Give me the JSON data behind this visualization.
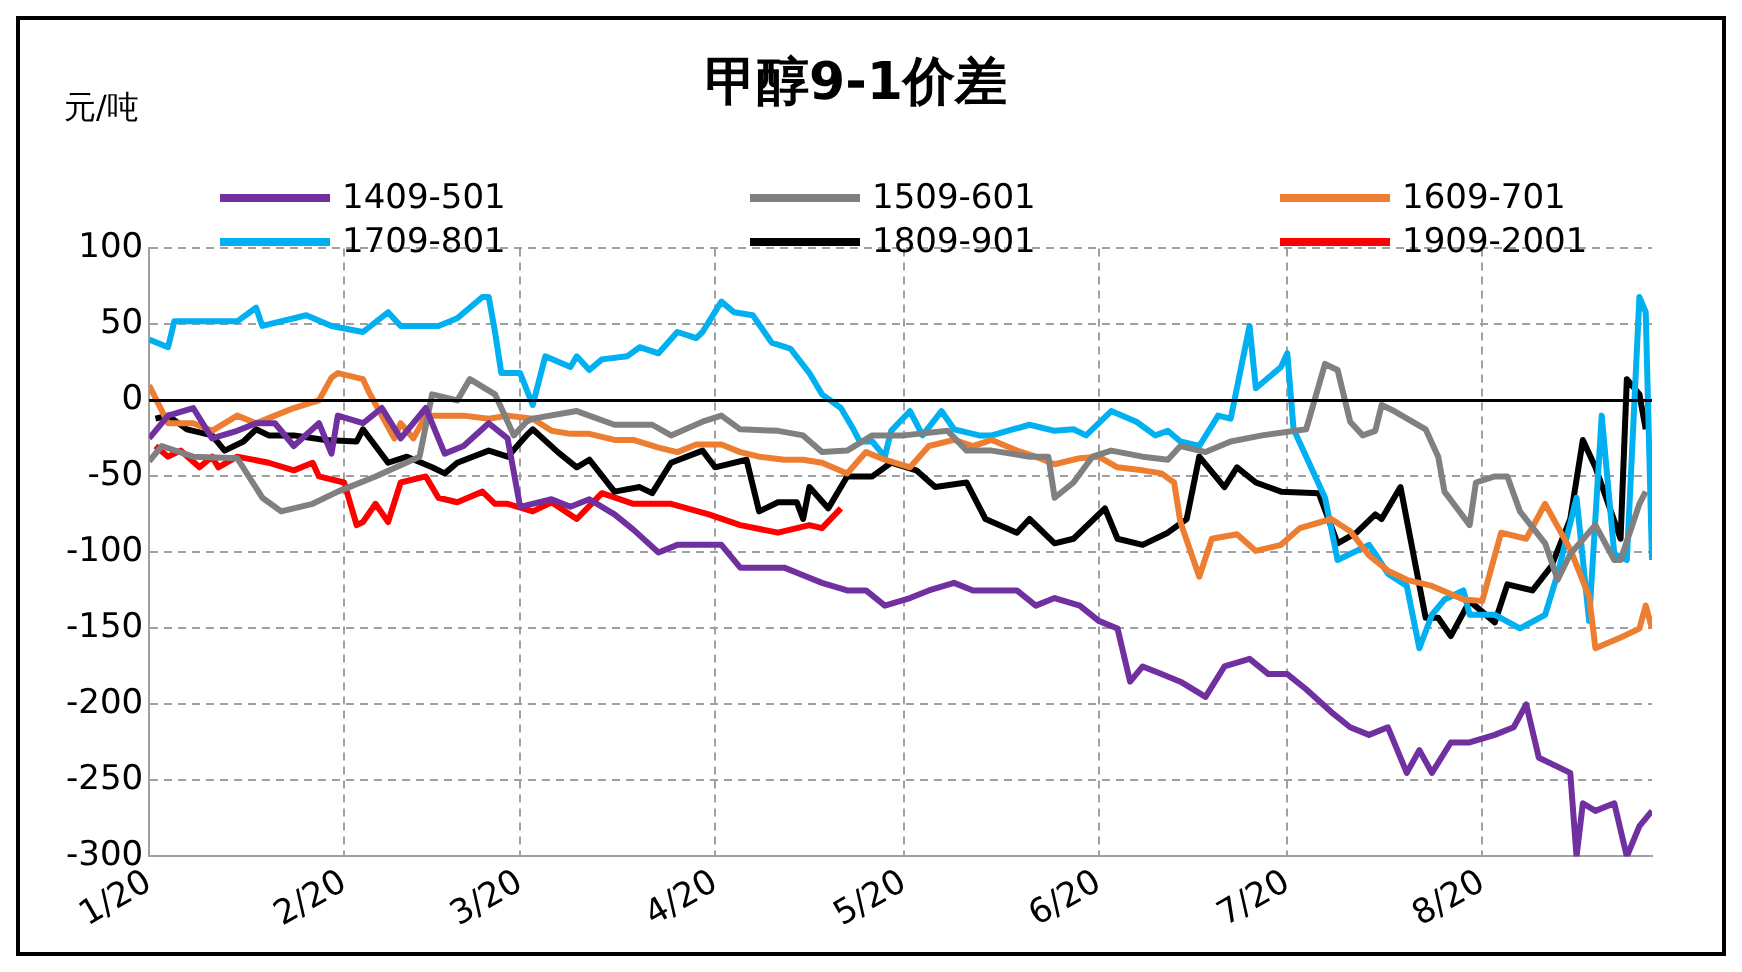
{
  "chart_data": {
    "type": "line",
    "title": "甲醇9-1价差",
    "ylabel": "元/吨",
    "legend": "top",
    "grid": true,
    "marker": "none",
    "line_style": "solid",
    "xlim": [
      "--01-20",
      "--09-16"
    ],
    "xticks": [
      {
        "value": "--01-20",
        "label": "1/20"
      },
      {
        "value": "--02-20",
        "label": "2/20"
      },
      {
        "value": "--03-20",
        "label": "3/20"
      },
      {
        "value": "--04-20",
        "label": "4/20"
      },
      {
        "value": "--05-20",
        "label": "5/20"
      },
      {
        "value": "--06-20",
        "label": "6/20"
      },
      {
        "value": "--07-20",
        "label": "7/20"
      },
      {
        "value": "--08-20",
        "label": "8/20"
      }
    ],
    "ylim": [
      -300,
      100
    ],
    "yticks": [
      -300,
      -250,
      -200,
      -150,
      -100,
      -50,
      0,
      50,
      100
    ],
    "ref_lines": [
      {
        "axis": "y",
        "value": 0,
        "color": "#000000"
      }
    ],
    "series": [
      {
        "name": "1409-501",
        "color": "#7030a0",
        "x": [
          "--01-20",
          "--01-23",
          "--01-27",
          "--01-30",
          "--02-03",
          "--02-06",
          "--02-09",
          "--02-12",
          "--02-16",
          "--02-18",
          "--02-19",
          "--02-23",
          "--02-26",
          "--03-01",
          "--03-05",
          "--03-08",
          "--03-11",
          "--03-15",
          "--03-18",
          "--03-20",
          "--03-25",
          "--03-28",
          "--03-31",
          "--04-04",
          "--04-07",
          "--04-11",
          "--04-14",
          "--04-17",
          "--04-21",
          "--04-24",
          "--04-27",
          "--05-01",
          "--05-04",
          "--05-07",
          "--05-11",
          "--05-14",
          "--05-17",
          "--05-21",
          "--05-24",
          "--05-28",
          "--05-31",
          "--06-03",
          "--06-07",
          "--06-10",
          "--06-13",
          "--06-17",
          "--06-20",
          "--06-23",
          "--06-25",
          "--06-27",
          "--06-30",
          "--07-03",
          "--07-07",
          "--07-10",
          "--07-14",
          "--07-17",
          "--07-20",
          "--07-23",
          "--07-27",
          "--07-30",
          "--08-02",
          "--08-05",
          "--08-08",
          "--08-10",
          "--08-12",
          "--08-15",
          "--08-18",
          "--08-22",
          "--08-25",
          "--08-27",
          "--08-29",
          "--09-03",
          "--09-04",
          "--09-05",
          "--09-07",
          "--09-10",
          "--09-12",
          "--09-14",
          "--09-16"
        ],
        "values": [
          -25,
          -10,
          -5,
          -25,
          -20,
          -15,
          -15,
          -30,
          -15,
          -35,
          -10,
          -15,
          -5,
          -25,
          -5,
          -35,
          -30,
          -15,
          -25,
          -70,
          -65,
          -70,
          -65,
          -75,
          -85,
          -100,
          -95,
          -95,
          -95,
          -110,
          -110,
          -110,
          -115,
          -120,
          -125,
          -125,
          -135,
          -130,
          -125,
          -120,
          -125,
          -125,
          -125,
          -135,
          -130,
          -135,
          -145,
          -150,
          -185,
          -175,
          -180,
          -185,
          -195,
          -175,
          -170,
          -180,
          -180,
          -190,
          -205,
          -215,
          -220,
          -215,
          -245,
          -230,
          -245,
          -225,
          -225,
          -220,
          -215,
          -200,
          -235,
          -245,
          -300,
          -265,
          -270,
          -265,
          -300,
          -280,
          -270
        ]
      },
      {
        "name": "1509-601",
        "color": "#808080",
        "x": [
          "--01-20",
          "--01-22",
          "--01-27",
          "--02-03",
          "--02-07",
          "--02-10",
          "--02-15",
          "--02-19",
          "--02-25",
          "--03-04",
          "--03-06",
          "--03-10",
          "--03-12",
          "--03-16",
          "--03-19",
          "--03-21",
          "--03-22",
          "--03-29",
          "--04-04",
          "--04-10",
          "--04-13",
          "--04-18",
          "--04-21",
          "--04-24",
          "--04-30",
          "--05-04",
          "--05-07",
          "--05-11",
          "--05-15",
          "--05-20",
          "--05-27",
          "--05-30",
          "--06-03",
          "--06-09",
          "--06-12",
          "--06-13",
          "--06-16",
          "--06-19",
          "--06-22",
          "--06-27",
          "--07-01",
          "--07-03",
          "--07-07",
          "--07-11",
          "--07-16",
          "--07-23",
          "--07-26",
          "--07-28",
          "--07-30",
          "--08-01",
          "--08-03",
          "--08-04",
          "--08-06",
          "--08-11",
          "--08-13",
          "--08-14",
          "--08-18",
          "--08-19",
          "--08-22",
          "--08-24",
          "--08-26",
          "--08-30",
          "--09-01",
          "--09-03",
          "--09-07",
          "--09-10",
          "--09-11",
          "--09-14",
          "--09-15"
        ],
        "values": [
          -40,
          -30,
          -37,
          -38,
          -64,
          -73,
          -68,
          -60,
          -50,
          -37,
          4,
          0,
          14,
          4,
          -23,
          -14,
          -12,
          -7,
          -16,
          -16,
          -23,
          -14,
          -10,
          -19,
          -20,
          -23,
          -34,
          -33,
          -23,
          -23,
          -20,
          -33,
          -33,
          -37,
          -37,
          -64,
          -54,
          -37,
          -33,
          -37,
          -39,
          -30,
          -34,
          -27,
          -23,
          -19,
          24,
          20,
          -14,
          -23,
          -20,
          -3,
          -7,
          -19,
          -37,
          -60,
          -82,
          -54,
          -50,
          -50,
          -73,
          -94,
          -118,
          -101,
          -82,
          -105,
          -105,
          -68,
          -60
        ]
      },
      {
        "name": "1609-701",
        "color": "#ed7d31",
        "x": [
          "--01-20",
          "--01-23",
          "--01-27",
          "--01-30",
          "--02-03",
          "--02-06",
          "--02-09",
          "--02-12",
          "--02-16",
          "--02-18",
          "--02-19",
          "--02-23",
          "--02-24",
          "--02-26",
          "--02-28",
          "--03-01",
          "--03-03",
          "--03-05",
          "--03-08",
          "--03-11",
          "--03-15",
          "--03-18",
          "--03-22",
          "--03-25",
          "--03-28",
          "--03-31",
          "--04-04",
          "--04-07",
          "--04-11",
          "--04-14",
          "--04-17",
          "--04-21",
          "--04-24",
          "--04-27",
          "--05-01",
          "--05-04",
          "--05-07",
          "--05-11",
          "--05-14",
          "--05-17",
          "--05-21",
          "--05-24",
          "--05-28",
          "--05-31",
          "--06-03",
          "--06-07",
          "--06-10",
          "--06-13",
          "--06-17",
          "--06-20",
          "--06-23",
          "--06-27",
          "--06-30",
          "--07-02",
          "--07-03",
          "--07-06",
          "--07-08",
          "--07-12",
          "--07-15",
          "--07-19",
          "--07-22",
          "--07-27",
          "--07-30",
          "--08-02",
          "--08-05",
          "--08-08",
          "--08-12",
          "--08-17",
          "--08-20",
          "--08-23",
          "--08-27",
          "--08-30",
          "--09-03",
          "--09-06",
          "--09-07",
          "--09-11",
          "--09-14",
          "--09-15",
          "--09-16"
        ],
        "values": [
          10,
          -15,
          -15,
          -20,
          -10,
          -15,
          -10,
          -5,
          0,
          15,
          18,
          14,
          5,
          -10,
          -25,
          -15,
          -25,
          -10,
          -10,
          -10,
          -12,
          -10,
          -12,
          -20,
          -22,
          -22,
          -26,
          -26,
          -31,
          -34,
          -29,
          -29,
          -34,
          -37,
          -39,
          -39,
          -41,
          -48,
          -34,
          -39,
          -44,
          -30,
          -26,
          -30,
          -26,
          -33,
          -37,
          -42,
          -38,
          -37,
          -44,
          -46,
          -48,
          -54,
          -80,
          -116,
          -91,
          -88,
          -99,
          -95,
          -84,
          -78,
          -86,
          -102,
          -112,
          -118,
          -122,
          -131,
          -132,
          -87,
          -91,
          -68,
          -98,
          -129,
          -163,
          -156,
          -150,
          -135,
          -150
        ]
      },
      {
        "name": "1709-801",
        "color": "#00b0f0",
        "x": [
          "--01-20",
          "--01-23",
          "--01-24",
          "--02-03",
          "--02-06",
          "--02-07",
          "--02-14",
          "--02-18",
          "--02-23",
          "--02-27",
          "--03-01",
          "--03-07",
          "--03-10",
          "--03-14",
          "--03-15",
          "--03-16",
          "--03-17",
          "--03-20",
          "--03-22",
          "--03-24",
          "--03-28",
          "--03-29",
          "--03-31",
          "--04-02",
          "--04-06",
          "--04-08",
          "--04-11",
          "--04-14",
          "--04-17",
          "--04-18",
          "--04-21",
          "--04-23",
          "--04-26",
          "--04-29",
          "--05-02",
          "--05-05",
          "--05-07",
          "--05-10",
          "--05-12",
          "--05-13",
          "--05-15",
          "--05-17",
          "--05-18",
          "--05-21",
          "--05-23",
          "--05-26",
          "--05-28",
          "--06-01",
          "--06-03",
          "--06-09",
          "--06-13",
          "--06-16",
          "--06-18",
          "--06-22",
          "--06-26",
          "--06-29",
          "--07-01",
          "--07-03",
          "--07-06",
          "--07-09",
          "--07-11",
          "--07-14",
          "--07-15",
          "--07-19",
          "--07-20",
          "--07-21",
          "--07-26",
          "--07-28",
          "--08-02",
          "--08-03",
          "--08-05",
          "--08-08",
          "--08-10",
          "--08-12",
          "--08-14",
          "--08-17",
          "--08-18",
          "--08-22",
          "--08-26",
          "--08-30",
          "--09-01",
          "--09-04",
          "--09-06",
          "--09-08",
          "--09-10",
          "--09-12",
          "--09-14",
          "--09-15",
          "--09-16"
        ],
        "values": [
          40,
          35,
          52,
          52,
          61,
          49,
          56,
          49,
          45,
          58,
          49,
          49,
          54,
          68,
          68,
          45,
          18,
          18,
          -3,
          29,
          22,
          29,
          20,
          27,
          29,
          35,
          31,
          45,
          41,
          45,
          65,
          58,
          56,
          38,
          34,
          18,
          4,
          -5,
          -19,
          -27,
          -27,
          -37,
          -20,
          -7,
          -23,
          -7,
          -19,
          -23,
          -23,
          -16,
          -20,
          -19,
          -23,
          -7,
          -14,
          -23,
          -20,
          -27,
          -30,
          -10,
          -12,
          49,
          8,
          22,
          31,
          -19,
          -64,
          -105,
          -95,
          -101,
          -114,
          -122,
          -163,
          -141,
          -131,
          -125,
          -141,
          -141,
          -150,
          -141,
          -114,
          -64,
          -145,
          -10,
          -101,
          -105,
          68,
          58,
          -105
        ]
      },
      {
        "name": "1809-901",
        "color": "#000000",
        "x": [
          "--01-21",
          "--01-23",
          "--01-26",
          "--01-30",
          "--02-01",
          "--02-04",
          "--02-06",
          "--02-08",
          "--02-12",
          "--02-17",
          "--02-22",
          "--02-23",
          "--02-27",
          "--03-02",
          "--03-06",
          "--03-08",
          "--03-10",
          "--03-15",
          "--03-18",
          "--03-21",
          "--03-22",
          "--03-26",
          "--03-29",
          "--03-31",
          "--04-04",
          "--04-08",
          "--04-10",
          "--04-13",
          "--04-18",
          "--04-20",
          "--04-25",
          "--04-27",
          "--04-30",
          "--05-03",
          "--05-04",
          "--05-05",
          "--05-08",
          "--05-11",
          "--05-15",
          "--05-18",
          "--05-22",
          "--05-25",
          "--05-30",
          "--06-02",
          "--06-07",
          "--06-09",
          "--06-13",
          "--06-16",
          "--06-21",
          "--06-23",
          "--06-27",
          "--07-01",
          "--07-04",
          "--07-06",
          "--07-10",
          "--07-12",
          "--07-15",
          "--07-19",
          "--07-25",
          "--07-28",
          "--07-31",
          "--08-03",
          "--08-04",
          "--08-07",
          "--08-11",
          "--08-13",
          "--08-15",
          "--08-18",
          "--08-22",
          "--08-24",
          "--08-28",
          "--08-31",
          "--09-03",
          "--09-05",
          "--09-07",
          "--09-11",
          "--09-12",
          "--09-14",
          "--09-15"
        ],
        "values": [
          -12,
          -10,
          -19,
          -23,
          -33,
          -27,
          -19,
          -23,
          -23,
          -26,
          -27,
          -19,
          -41,
          -37,
          -44,
          -48,
          -41,
          -33,
          -37,
          -23,
          -19,
          -34,
          -44,
          -39,
          -60,
          -57,
          -61,
          -41,
          -33,
          -44,
          -39,
          -73,
          -67,
          -67,
          -78,
          -57,
          -71,
          -50,
          -50,
          -41,
          -46,
          -57,
          -54,
          -78,
          -87,
          -78,
          -94,
          -91,
          -71,
          -91,
          -95,
          -87,
          -78,
          -37,
          -57,
          -44,
          -54,
          -60,
          -61,
          -94,
          -87,
          -75,
          -78,
          -57,
          -143,
          -143,
          -155,
          -132,
          -146,
          -121,
          -125,
          -109,
          -78,
          -26,
          -44,
          -91,
          14,
          4,
          -19
        ]
      },
      {
        "name": "1909-2001",
        "color": "#ff0000",
        "x": [
          "--01-21",
          "--01-23",
          "--01-25",
          "--01-28",
          "--01-30",
          "--01-31",
          "--02-03",
          "--02-08",
          "--02-12",
          "--02-15",
          "--02-16",
          "--02-20",
          "--02-22",
          "--02-23",
          "--02-25",
          "--02-27",
          "--03-01",
          "--03-05",
          "--03-07",
          "--03-10",
          "--03-14",
          "--03-16",
          "--03-18",
          "--03-22",
          "--03-25",
          "--03-29",
          "--04-02",
          "--04-07",
          "--04-13",
          "--04-19",
          "--04-24",
          "--04-30",
          "--05-05",
          "--05-07",
          "--05-10"
        ],
        "values": [
          -30,
          -37,
          -33,
          -44,
          -37,
          -44,
          -37,
          -41,
          -46,
          -41,
          -50,
          -54,
          -82,
          -80,
          -68,
          -80,
          -54,
          -50,
          -64,
          -67,
          -60,
          -68,
          -68,
          -73,
          -67,
          -78,
          -61,
          -68,
          -68,
          -75,
          -82,
          -87,
          -82,
          -84,
          -71
        ]
      }
    ]
  }
}
